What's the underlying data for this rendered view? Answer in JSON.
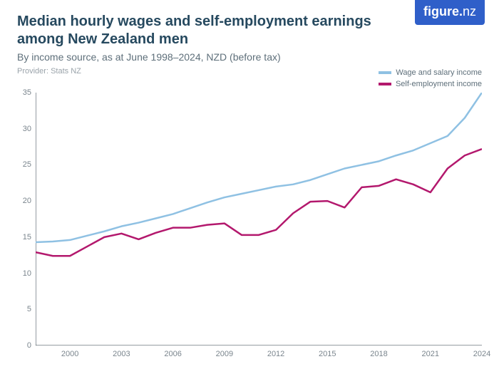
{
  "logo": {
    "brand": "figure.",
    "suffix": "nz",
    "bg": "#2f5fc9",
    "fg": "#ffffff"
  },
  "title": "Median hourly wages and self-employment earnings among New Zealand men",
  "subtitle": "By income source, as at June 1998–2024, NZD (before tax)",
  "provider": "Provider: Stats NZ",
  "legend": [
    {
      "label": "Wage and salary income",
      "color": "#8fc1e3"
    },
    {
      "label": "Self-employment income",
      "color": "#b3186d"
    }
  ],
  "chart": {
    "type": "line",
    "background_color": "#ffffff",
    "axis_color": "#2b3a44",
    "tick_font_size": 11,
    "tick_color": "#7a858d",
    "line_width": 2.5,
    "xlim": [
      1998,
      2024
    ],
    "ylim": [
      0,
      35
    ],
    "yticks": [
      0,
      5,
      10,
      15,
      20,
      25,
      30,
      35
    ],
    "xticks": [
      2000,
      2003,
      2006,
      2009,
      2012,
      2015,
      2018,
      2021,
      2024
    ],
    "x": [
      1998,
      1999,
      2000,
      2001,
      2002,
      2003,
      2004,
      2005,
      2006,
      2007,
      2008,
      2009,
      2010,
      2011,
      2012,
      2013,
      2014,
      2015,
      2016,
      2017,
      2018,
      2019,
      2020,
      2021,
      2022,
      2023,
      2024
    ],
    "series": [
      {
        "id": "wage",
        "color": "#8fc1e3",
        "y": [
          14.3,
          14.4,
          14.6,
          15.2,
          15.8,
          16.5,
          17.0,
          17.6,
          18.2,
          19.0,
          19.8,
          20.5,
          21.0,
          21.5,
          22.0,
          22.3,
          22.9,
          23.7,
          24.5,
          25.0,
          25.5,
          26.3,
          27.0,
          28.0,
          29.0,
          31.5,
          35.0
        ]
      },
      {
        "id": "self",
        "color": "#b3186d",
        "y": [
          12.9,
          12.4,
          12.4,
          13.7,
          15.0,
          15.5,
          14.7,
          15.6,
          16.3,
          16.3,
          16.7,
          16.9,
          15.3,
          15.3,
          16.0,
          18.3,
          19.9,
          20.0,
          19.1,
          21.9,
          22.1,
          23.0,
          22.3,
          21.2,
          24.5,
          26.3,
          27.2
        ]
      }
    ]
  }
}
